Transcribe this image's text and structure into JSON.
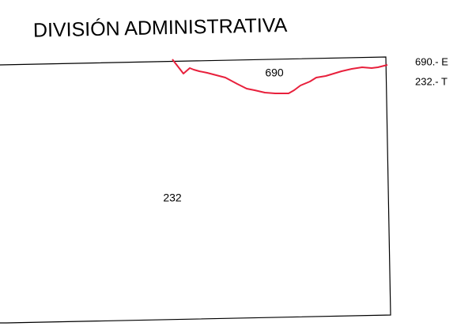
{
  "title": "DIVISIÓN ADMINISTRATIVA",
  "regions": [
    {
      "label": "690"
    },
    {
      "label": "232"
    }
  ],
  "legend": [
    "690.- E",
    "232.- T"
  ]
}
